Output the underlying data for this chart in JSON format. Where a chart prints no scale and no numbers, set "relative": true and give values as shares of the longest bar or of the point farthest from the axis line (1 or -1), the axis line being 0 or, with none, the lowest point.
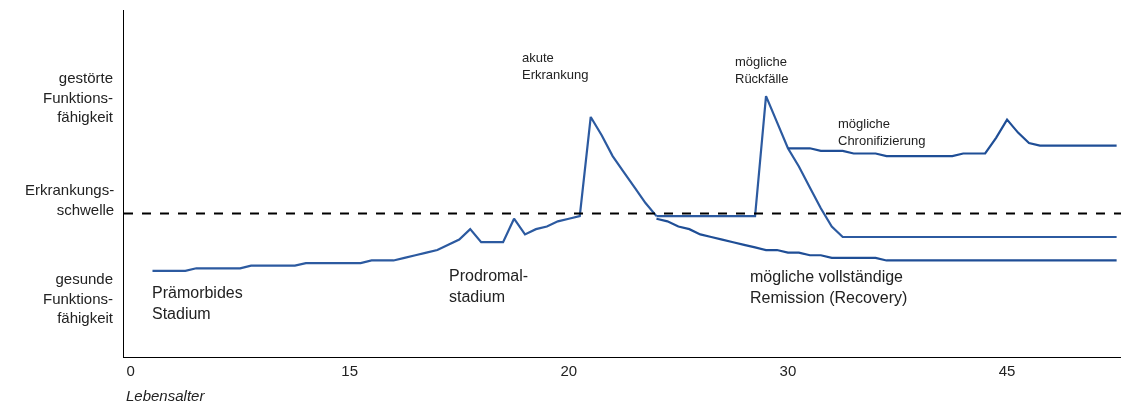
{
  "chart_data": {
    "type": "line",
    "relative": true,
    "xlabel": "Lebensalter",
    "categories": [
      "0",
      null,
      null,
      null,
      null,
      null,
      null,
      null,
      null,
      null,
      null,
      null,
      null,
      null,
      null,
      null,
      null,
      null,
      null,
      null,
      "15",
      null,
      null,
      null,
      null,
      null,
      null,
      null,
      null,
      null,
      null,
      null,
      null,
      null,
      null,
      null,
      null,
      null,
      null,
      null,
      "20",
      null,
      null,
      null,
      null,
      null,
      null,
      null,
      null,
      null,
      null,
      null,
      null,
      null,
      null,
      null,
      null,
      null,
      null,
      null,
      "30",
      null,
      null,
      null,
      null,
      null,
      null,
      null,
      null,
      null,
      null,
      null,
      null,
      null,
      null,
      null,
      null,
      null,
      null,
      null,
      "45",
      null,
      null,
      null,
      null,
      null,
      null,
      null,
      null,
      null,
      null
    ],
    "series": [
      {
        "color": "#2c5aa0",
        "values": [
          null,
          null,
          0.33,
          0.33,
          0.33,
          0.33,
          0.34,
          0.34,
          0.34,
          0.34,
          0.34,
          0.35,
          0.35,
          0.35,
          0.35,
          0.35,
          0.36,
          0.36,
          0.36,
          0.36,
          0.36,
          0.36,
          0.37,
          0.37,
          0.37,
          0.38,
          0.39,
          0.4,
          0.41,
          0.43,
          0.45,
          0.49,
          0.44,
          0.44,
          0.44,
          0.53,
          0.47,
          0.49,
          0.5,
          0.52,
          0.53,
          0.54,
          0.92,
          0.85,
          0.77,
          0.71,
          0.65,
          0.59,
          0.54,
          null,
          null,
          null,
          null,
          null,
          null,
          null,
          null,
          null,
          null,
          null,
          null,
          null,
          null,
          null,
          null,
          null,
          null,
          null,
          null,
          null,
          null,
          null,
          null,
          null,
          null,
          null,
          null,
          null,
          null,
          null,
          null,
          null,
          null,
          null,
          null,
          null,
          null,
          null,
          null,
          null,
          null
        ]
      },
      {
        "color": "#2c5aa0",
        "values": [
          null,
          null,
          null,
          null,
          null,
          null,
          null,
          null,
          null,
          null,
          null,
          null,
          null,
          null,
          null,
          null,
          null,
          null,
          null,
          null,
          null,
          null,
          null,
          null,
          null,
          null,
          null,
          null,
          null,
          null,
          null,
          null,
          null,
          null,
          null,
          null,
          null,
          null,
          null,
          null,
          null,
          null,
          null,
          null,
          null,
          null,
          null,
          null,
          0.54,
          0.54,
          0.54,
          0.54,
          0.54,
          0.54,
          0.54,
          0.54,
          0.54,
          0.54,
          1.0,
          0.9,
          0.8,
          0.73,
          0.65,
          0.57,
          0.5,
          0.46,
          0.46,
          0.46,
          0.46,
          0.46,
          0.46,
          0.46,
          0.46,
          0.46,
          0.46,
          0.46,
          0.46,
          0.46,
          0.46,
          0.46,
          0.46,
          0.46,
          0.46,
          0.46,
          0.46,
          0.46,
          0.46,
          0.46,
          0.46,
          0.46,
          0.46
        ]
      },
      {
        "color": "#1f4e96",
        "values": [
          null,
          null,
          null,
          null,
          null,
          null,
          null,
          null,
          null,
          null,
          null,
          null,
          null,
          null,
          null,
          null,
          null,
          null,
          null,
          null,
          null,
          null,
          null,
          null,
          null,
          null,
          null,
          null,
          null,
          null,
          null,
          null,
          null,
          null,
          null,
          null,
          null,
          null,
          null,
          null,
          null,
          null,
          null,
          null,
          null,
          null,
          null,
          null,
          null,
          null,
          null,
          null,
          null,
          null,
          null,
          null,
          null,
          null,
          null,
          null,
          0.8,
          0.8,
          0.8,
          0.79,
          0.79,
          0.79,
          0.78,
          0.78,
          0.78,
          0.77,
          0.77,
          0.77,
          0.77,
          0.77,
          0.77,
          0.77,
          0.78,
          0.78,
          0.78,
          0.84,
          0.91,
          0.86,
          0.82,
          0.81,
          0.81,
          0.81,
          0.81,
          0.81,
          0.81,
          0.81,
          0.81
        ]
      },
      {
        "color": "#1f4e96",
        "values": [
          null,
          null,
          null,
          null,
          null,
          null,
          null,
          null,
          null,
          null,
          null,
          null,
          null,
          null,
          null,
          null,
          null,
          null,
          null,
          null,
          null,
          null,
          null,
          null,
          null,
          null,
          null,
          null,
          null,
          null,
          null,
          null,
          null,
          null,
          null,
          null,
          null,
          null,
          null,
          null,
          null,
          null,
          null,
          null,
          null,
          null,
          null,
          null,
          0.53,
          0.52,
          0.5,
          0.49,
          0.47,
          0.46,
          0.45,
          0.44,
          0.43,
          0.42,
          0.41,
          0.41,
          0.4,
          0.4,
          0.39,
          0.39,
          0.38,
          0.38,
          0.38,
          0.38,
          0.38,
          0.37,
          0.37,
          0.37,
          0.37,
          0.37,
          0.37,
          0.37,
          0.37,
          0.37,
          0.37,
          0.37,
          0.37,
          0.37,
          0.37,
          0.37,
          0.37,
          0.37,
          0.37,
          0.37,
          0.37,
          0.37,
          0.37
        ]
      }
    ],
    "ref_lines": [
      {
        "axis": "y",
        "value": 0.55,
        "label": "Erkrankungs-\nschwelle",
        "color": "#000000",
        "line_style": "dashed"
      }
    ],
    "annotations": [
      "gestörte\nFunktions-\nfähigkeit",
      "gesunde\nFunktions-\nfähigkeit",
      "akute\nErkrankung",
      "mögliche\nRückfälle",
      "mögliche\nChronifizierung",
      "Prämorbides\nStadium",
      "Prodromal-\nstadium",
      "mögliche vollständige\nRemission (Recovery)"
    ],
    "line_style": "solid"
  }
}
